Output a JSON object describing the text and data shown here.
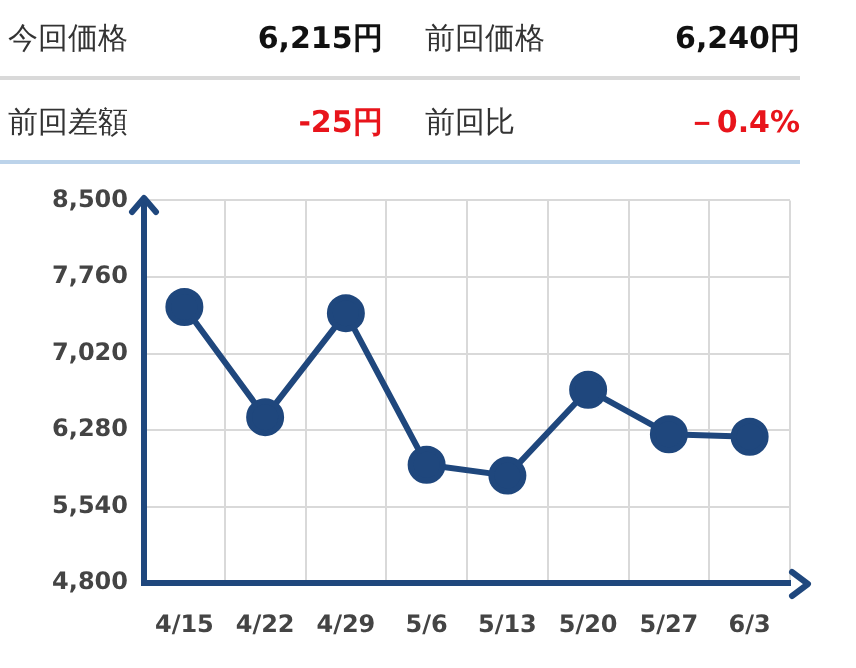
{
  "chart_data": {
    "type": "line",
    "categories": [
      "4/15",
      "4/22",
      "4/29",
      "5/6",
      "5/13",
      "5/20",
      "5/27",
      "6/3"
    ],
    "series": [
      {
        "color": "#1f477d",
        "values": [
          7470,
          6405,
          7410,
          5945,
          5840,
          6670,
          6240,
          6215
        ]
      }
    ],
    "ylim": [
      4800,
      8500
    ],
    "yticks": [
      {
        "value": 4800,
        "label": "4,800"
      },
      {
        "value": 5540,
        "label": "5,540"
      },
      {
        "value": 6280,
        "label": "6,280"
      },
      {
        "value": 7020,
        "label": "7,020"
      },
      {
        "value": 7760,
        "label": "7,760"
      },
      {
        "value": 8500,
        "label": "8,500"
      }
    ],
    "grid": true,
    "legend": false,
    "marker": "circle",
    "line_style": "solid",
    "annotations": [
      "今回価格",
      "6,215円",
      "前回価格",
      "6,240円",
      "前回差額",
      "-25円",
      "前回比",
      "－0.4%"
    ]
  }
}
